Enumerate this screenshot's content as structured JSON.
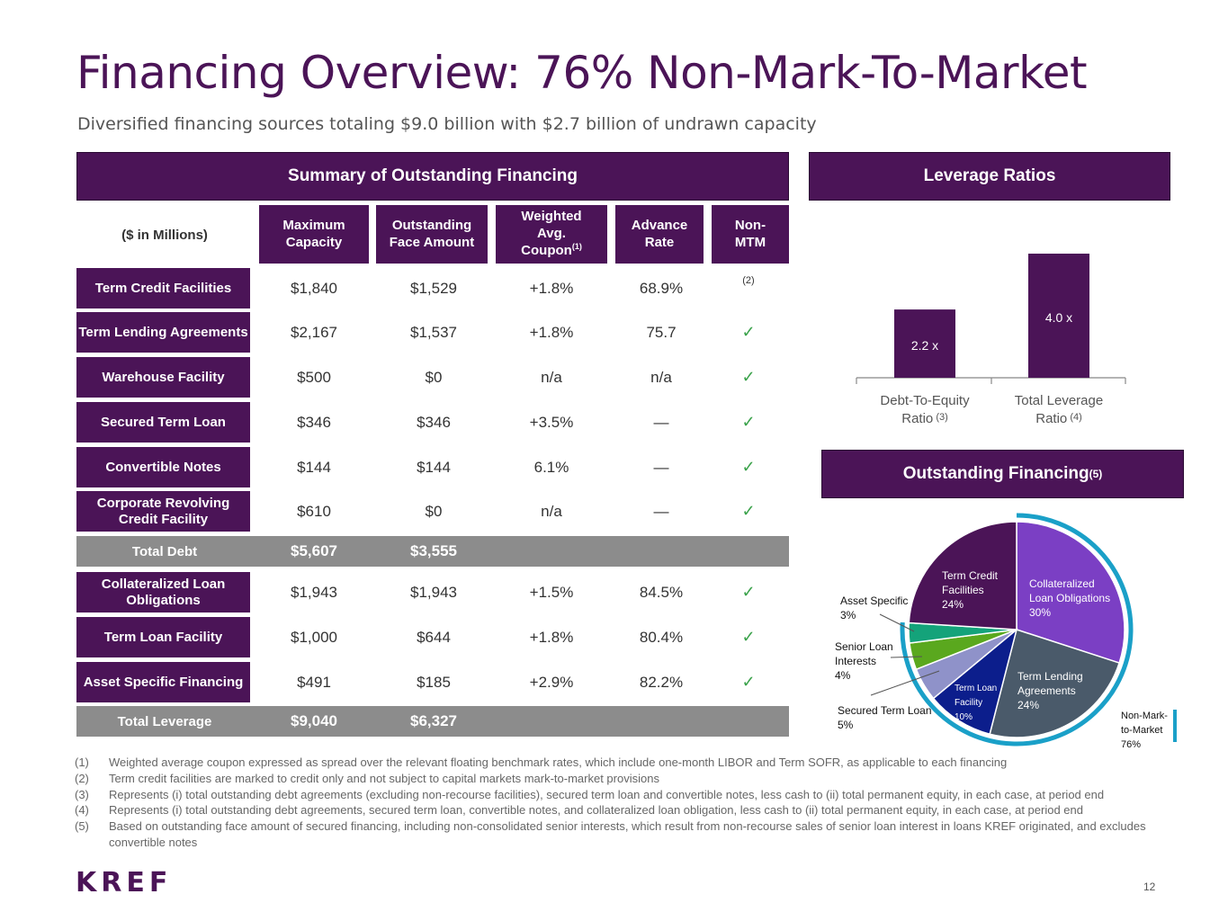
{
  "title": "Financing Overview: 76% Non-Mark-To-Market",
  "subtitle": "Diversified financing sources totaling $9.0 billion with $2.7 billion of undrawn capacity",
  "summary": {
    "header": "Summary of Outstanding Financing",
    "units": "($ in Millions)",
    "columns": [
      {
        "label": "Maximum Capacity",
        "sup": ""
      },
      {
        "label": "Outstanding Face Amount",
        "sup": ""
      },
      {
        "label": "Weighted Avg. Coupon",
        "sup": "(1)"
      },
      {
        "label": "Advance Rate",
        "sup": ""
      },
      {
        "label": "Non-MTM",
        "sup": ""
      }
    ],
    "rows": [
      {
        "label": "Term Credit Facilities",
        "max": "$1,840",
        "out": "$1,529",
        "coupon": "+1.8%",
        "advance": "68.9%",
        "mtm": "(2)"
      },
      {
        "label": "Term Lending Agreements",
        "max": "$2,167",
        "out": "$1,537",
        "coupon": "+1.8%",
        "advance": "75.7",
        "mtm": "✓"
      },
      {
        "label": "Warehouse Facility",
        "max": "$500",
        "out": "$0",
        "coupon": "n/a",
        "advance": "n/a",
        "mtm": "✓"
      },
      {
        "label": "Secured Term Loan",
        "max": "$346",
        "out": "$346",
        "coupon": "+3.5%",
        "advance": "—",
        "mtm": "✓"
      },
      {
        "label": "Convertible Notes",
        "max": "$144",
        "out": "$144",
        "coupon": "6.1%",
        "advance": "—",
        "mtm": "✓"
      },
      {
        "label": "Corporate Revolving Credit Facility",
        "max": "$610",
        "out": "$0",
        "coupon": "n/a",
        "advance": "—",
        "mtm": "✓"
      },
      {
        "label": "Collateralized Loan Obligations",
        "max": "$1,943",
        "out": "$1,943",
        "coupon": "+1.5%",
        "advance": "84.5%",
        "mtm": "✓"
      },
      {
        "label": "Term Loan Facility",
        "max": "$1,000",
        "out": "$644",
        "coupon": "+1.8%",
        "advance": "80.4%",
        "mtm": "✓"
      },
      {
        "label": "Asset Specific Financing",
        "max": "$491",
        "out": "$185",
        "coupon": "+2.9%",
        "advance": "82.2%",
        "mtm": "✓"
      }
    ],
    "total_debt": {
      "label": "Total Debt",
      "max": "$5,607",
      "out": "$3,555"
    },
    "total_leverage": {
      "label": "Total Leverage",
      "max": "$9,040",
      "out": "$6,327"
    }
  },
  "leverage": {
    "header": "Leverage Ratios",
    "bars": [
      {
        "value": 2.2,
        "label_value": "2.2",
        "suffix": "x",
        "name": "Debt-To-Equity Ratio",
        "note": "(3)"
      },
      {
        "value": 4.0,
        "label_value": "4.0",
        "suffix": "x",
        "name": "Total Leverage Ratio",
        "note": "(4)"
      }
    ]
  },
  "outstanding": {
    "header": "Outstanding Financing",
    "header_sup": "(5)",
    "slices": [
      {
        "name": "Collateralized Loan Obligations",
        "pct": 30,
        "color": "#7b3fc4"
      },
      {
        "name": "Term Lending Agreements",
        "pct": 24,
        "color": "#4a5a6a"
      },
      {
        "name": "Term Loan Facility",
        "pct": 10,
        "color": "#0c1e8c"
      },
      {
        "name": "Secured Term Loan",
        "pct": 5,
        "color": "#8f92c9"
      },
      {
        "name": "Senior Loan Interests",
        "pct": 4,
        "color": "#5aa81e"
      },
      {
        "name": "Asset Specific",
        "pct": 3,
        "color": "#14a37a"
      },
      {
        "name": "Term Credit Facilities",
        "pct": 24,
        "color": "#4b1457"
      }
    ],
    "labels": {
      "clo": [
        "Collateralized",
        "Loan Obligations",
        "30%"
      ],
      "tla": [
        "Term Lending",
        "Agreements",
        "24%"
      ],
      "tlf": [
        "Term Loan",
        "Facility",
        "10%"
      ],
      "tcf": [
        "Term Credit",
        "Facilities",
        "24%"
      ],
      "asset": [
        "Asset Specific",
        "3%"
      ],
      "senior": [
        "Senior Loan",
        "Interests",
        "4%"
      ],
      "secured": [
        "Secured Term Loan",
        "5%"
      ]
    },
    "non_mtm_label": [
      "Non-Mark-",
      "to-Market",
      "76%"
    ],
    "non_mtm_pct": 76,
    "ring_color": "#1aa0c8"
  },
  "footnotes": [
    {
      "num": "(1)",
      "text": "Weighted average coupon expressed as spread over the relevant floating benchmark rates, which include one-month LIBOR and Term SOFR, as applicable to each financing"
    },
    {
      "num": "(2)",
      "text": "Term credit facilities are marked to credit only and not subject to capital markets mark-to-market provisions"
    },
    {
      "num": "(3)",
      "text": "Represents (i) total outstanding debt agreements (excluding non-recourse facilities), secured term loan and convertible notes, less cash to (ii) total permanent equity, in each case, at period end"
    },
    {
      "num": "(4)",
      "text": "Represents (i) total outstanding debt agreements, secured term loan, convertible notes, and collateralized loan obligation, less cash to (ii) total permanent equity, in each case, at period end"
    },
    {
      "num": "(5)",
      "text": "Based on outstanding face amount of secured financing, including non-consolidated senior interests, which result from non-recourse sales of senior loan interest in loans KREF originated, and excludes convertible notes"
    }
  ],
  "logo": "KREF",
  "page_number": "12"
}
